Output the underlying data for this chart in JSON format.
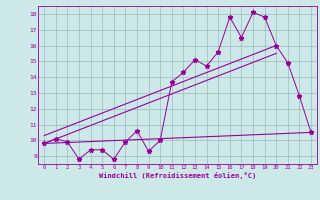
{
  "x": [
    0,
    1,
    2,
    3,
    4,
    5,
    6,
    7,
    8,
    9,
    10,
    11,
    12,
    13,
    14,
    15,
    16,
    17,
    18,
    19,
    20,
    21,
    22,
    23
  ],
  "y_main": [
    9.8,
    10.1,
    9.9,
    8.8,
    9.4,
    9.4,
    8.8,
    9.9,
    10.6,
    9.3,
    10.0,
    13.7,
    14.3,
    15.1,
    14.7,
    15.6,
    17.8,
    16.5,
    18.1,
    17.8,
    16.0,
    14.9,
    12.8,
    10.5
  ],
  "y_line_upper_start": 10.3,
  "y_line_upper_end": 16.0,
  "y_line_upper_x_end": 20,
  "y_line_lower_start": 9.8,
  "y_line_lower_end": 15.5,
  "y_line_lower_x_end": 20,
  "y_flat_start": 9.8,
  "y_flat_end": 10.5,
  "line_color": "#990099",
  "bg_color": "#cce8e8",
  "grid_color": "#99bbbb",
  "xlabel": "Windchill (Refroidissement éolien,°C)",
  "ylabel_ticks": [
    9,
    10,
    11,
    12,
    13,
    14,
    15,
    16,
    17,
    18
  ],
  "xlim": [
    -0.5,
    23.5
  ],
  "ylim": [
    8.5,
    18.5
  ]
}
